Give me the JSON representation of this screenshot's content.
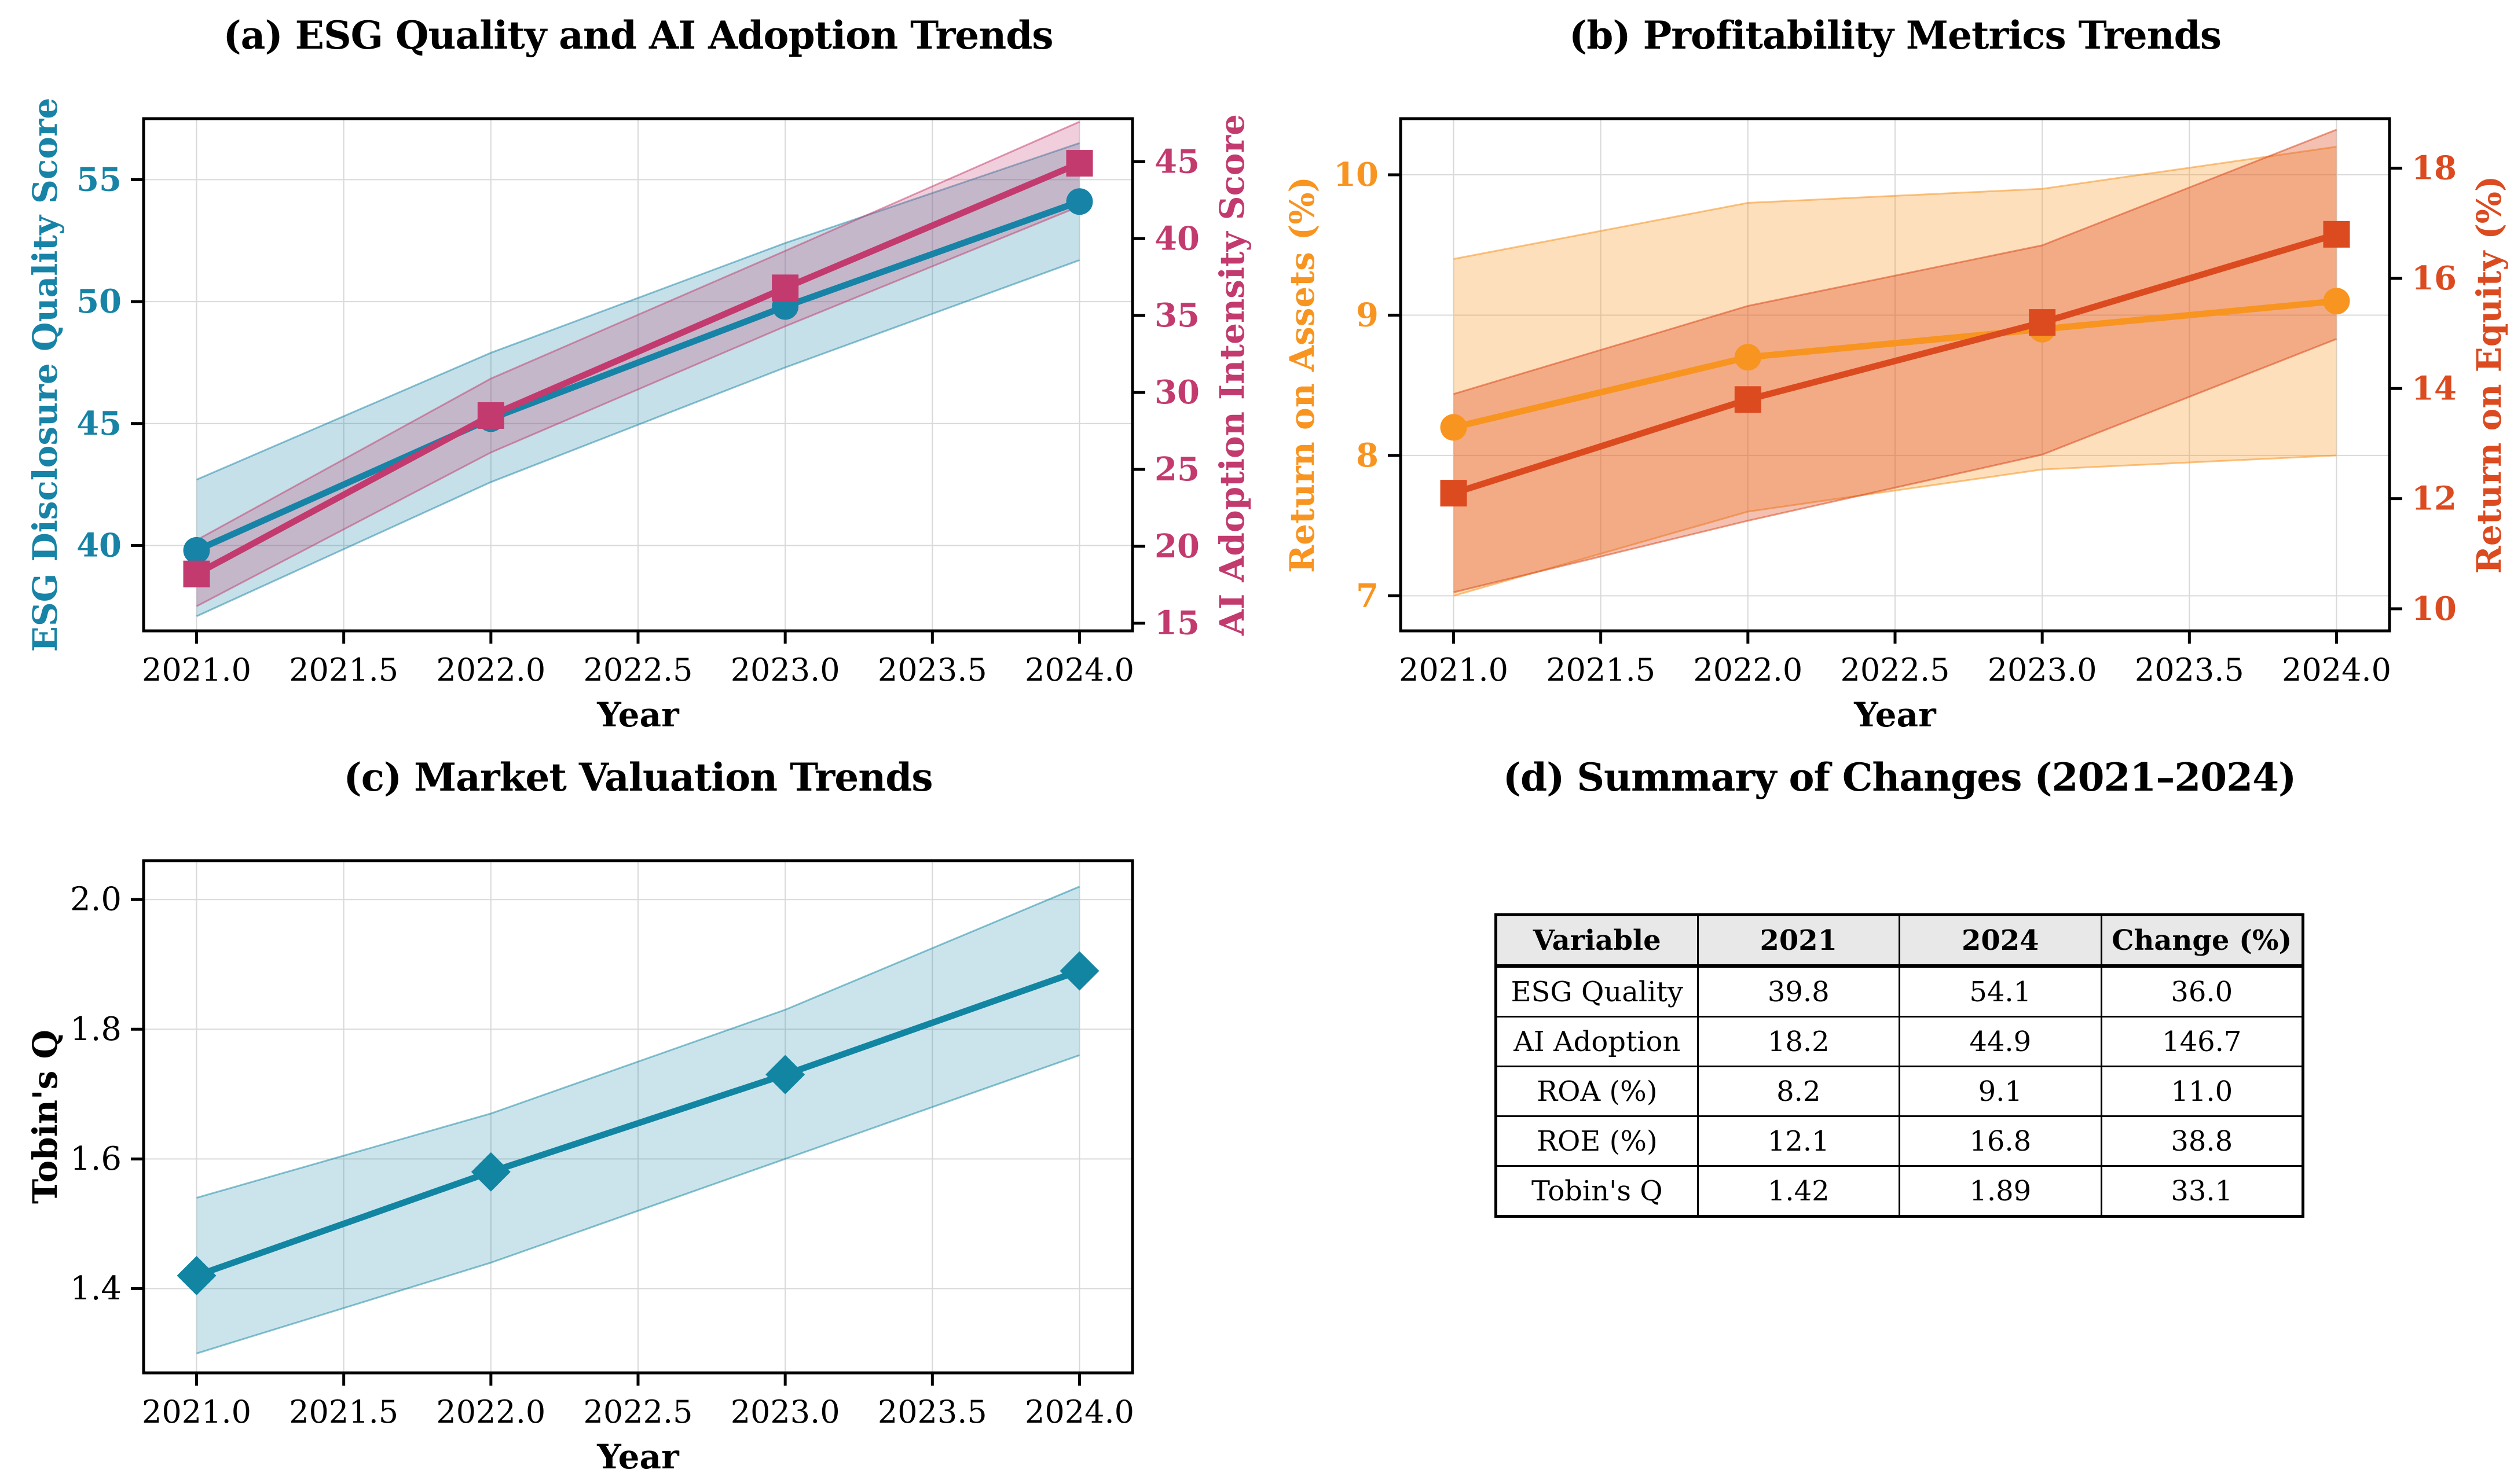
{
  "figure": {
    "background": "#ffffff",
    "grid_color": "#d9d9d9",
    "spine_color": "#000000",
    "tick_color": "#000000"
  },
  "chart_data": [
    {
      "type": "line",
      "panel": "a",
      "title": "(a) ESG Quality and AI Adoption Trends",
      "xlabel": "Year",
      "grid": true,
      "legend_position": "none",
      "x": [
        2021,
        2022,
        2023,
        2024
      ],
      "xlim": [
        2020.82,
        2024.18
      ],
      "x_ticks": [
        2021.0,
        2021.5,
        2022.0,
        2022.5,
        2023.0,
        2023.5,
        2024.0
      ],
      "x_tick_labels": [
        "2021.0",
        "2021.5",
        "2022.0",
        "2022.5",
        "2023.0",
        "2023.5",
        "2024.0"
      ],
      "axes": {
        "left": {
          "label": "ESG Disclosure Quality Score",
          "color": "#1783a6",
          "ticks": [
            40,
            45,
            50,
            55
          ],
          "tick_labels": [
            "40",
            "45",
            "50",
            "55"
          ],
          "lim": [
            36.5,
            57.5
          ],
          "bold_ticks": true
        },
        "right": {
          "label": "AI Adoption Intensity Score",
          "color": "#c23a6e",
          "ticks": [
            15,
            20,
            25,
            30,
            35,
            40,
            45
          ],
          "tick_labels": [
            "15",
            "20",
            "25",
            "30",
            "35",
            "40",
            "45"
          ],
          "lim": [
            14.5,
            47.8
          ],
          "bold_ticks": true
        }
      },
      "series": [
        {
          "key": "esg-quality",
          "name": "ESG Disclosure Quality Score",
          "axis": "left",
          "color": "#1783a6",
          "marker": "circle",
          "values": [
            39.8,
            45.2,
            49.8,
            54.1
          ],
          "band_lower": [
            37.1,
            42.6,
            47.3,
            51.7
          ],
          "band_upper": [
            42.7,
            47.9,
            52.4,
            56.5
          ],
          "band_fill": "rgba(23,131,166,0.25)",
          "band_edge": "rgba(23,131,166,0.5)"
        },
        {
          "key": "ai-adoption",
          "name": "AI Adoption Intensity Score",
          "axis": "right",
          "color": "#c23a6e",
          "marker": "square",
          "values": [
            18.2,
            28.5,
            36.8,
            44.9
          ],
          "band_lower": [
            16.1,
            26.1,
            34.3,
            42.1
          ],
          "band_upper": [
            20.4,
            30.9,
            39.2,
            47.6
          ],
          "band_fill": "rgba(194,58,110,0.25)",
          "band_edge": "rgba(194,58,110,0.5)"
        }
      ]
    },
    {
      "type": "line",
      "panel": "b",
      "title": "(b) Profitability Metrics Trends",
      "xlabel": "Year",
      "grid": true,
      "legend_position": "none",
      "x": [
        2021,
        2022,
        2023,
        2024
      ],
      "xlim": [
        2020.82,
        2024.18
      ],
      "x_ticks": [
        2021.0,
        2021.5,
        2022.0,
        2022.5,
        2023.0,
        2023.5,
        2024.0
      ],
      "x_tick_labels": [
        "2021.0",
        "2021.5",
        "2022.0",
        "2022.5",
        "2023.0",
        "2023.5",
        "2024.0"
      ],
      "axes": {
        "left": {
          "label": "Return on Assets (%)",
          "color": "#f89420",
          "ticks": [
            7,
            8,
            9,
            10
          ],
          "tick_labels": [
            "7",
            "8",
            "9",
            "10"
          ],
          "lim": [
            6.75,
            10.4
          ],
          "bold_ticks": true
        },
        "right": {
          "label": "Return on Equity (%)",
          "color": "#dc4a20",
          "ticks": [
            10,
            12,
            14,
            16,
            18
          ],
          "tick_labels": [
            "10",
            "12",
            "14",
            "16",
            "18"
          ],
          "lim": [
            9.6,
            18.9
          ],
          "bold_ticks": true
        }
      },
      "series": [
        {
          "key": "roa",
          "name": "Return on Assets (%)",
          "axis": "left",
          "color": "#f89420",
          "marker": "circle",
          "values": [
            8.2,
            8.7,
            8.9,
            9.1
          ],
          "band_lower": [
            7.0,
            7.6,
            7.9,
            8.0
          ],
          "band_upper": [
            9.4,
            9.8,
            9.9,
            10.2
          ],
          "band_fill": "rgba(248,148,32,0.30)",
          "band_edge": "rgba(248,148,32,0.55)"
        },
        {
          "key": "roe",
          "name": "Return on Equity (%)",
          "axis": "right",
          "color": "#dc4a20",
          "marker": "square",
          "values": [
            12.1,
            13.8,
            15.2,
            16.8
          ],
          "band_lower": [
            10.3,
            11.6,
            12.8,
            14.9
          ],
          "band_upper": [
            13.9,
            15.5,
            16.6,
            18.7
          ],
          "band_fill": "rgba(220,74,32,0.35)",
          "band_edge": "rgba(220,74,32,0.55)"
        }
      ]
    },
    {
      "type": "line",
      "panel": "c",
      "title": "(c) Market Valuation Trends",
      "xlabel": "Year",
      "grid": true,
      "legend_position": "none",
      "x": [
        2021,
        2022,
        2023,
        2024
      ],
      "xlim": [
        2020.82,
        2024.18
      ],
      "x_ticks": [
        2021.0,
        2021.5,
        2022.0,
        2022.5,
        2023.0,
        2023.5,
        2024.0
      ],
      "x_tick_labels": [
        "2021.0",
        "2021.5",
        "2022.0",
        "2022.5",
        "2023.0",
        "2023.5",
        "2024.0"
      ],
      "axes": {
        "left": {
          "label": "Tobin's Q",
          "color": "#000000",
          "ticks": [
            1.4,
            1.6,
            1.8,
            2.0
          ],
          "tick_labels": [
            "1.4",
            "1.6",
            "1.8",
            "2.0"
          ],
          "lim": [
            1.27,
            2.06
          ],
          "bold_ticks": false
        }
      },
      "series": [
        {
          "key": "tobins-q",
          "name": "Tobin's Q",
          "axis": "left",
          "color": "#1285a2",
          "marker": "diamond",
          "values": [
            1.42,
            1.58,
            1.73,
            1.89
          ],
          "band_lower": [
            1.3,
            1.44,
            1.6,
            1.76
          ],
          "band_upper": [
            1.54,
            1.67,
            1.83,
            2.02
          ],
          "band_fill": "rgba(18,133,162,0.22)",
          "band_edge": "rgba(18,133,162,0.5)"
        }
      ]
    },
    {
      "type": "table",
      "panel": "d",
      "title": "(d) Summary of Changes (2021–2024)",
      "header_bg": "#e8e8e8",
      "columns": [
        "Variable",
        "2021",
        "2024",
        "Change (%)"
      ],
      "rows": [
        [
          "ESG Quality",
          "39.8",
          "54.1",
          "36.0"
        ],
        [
          "AI Adoption",
          "18.2",
          "44.9",
          "146.7"
        ],
        [
          "ROA (%)",
          "8.2",
          "9.1",
          "11.0"
        ],
        [
          "ROE (%)",
          "12.1",
          "16.8",
          "38.8"
        ],
        [
          "Tobin's Q",
          "1.42",
          "1.89",
          "33.1"
        ]
      ]
    }
  ]
}
